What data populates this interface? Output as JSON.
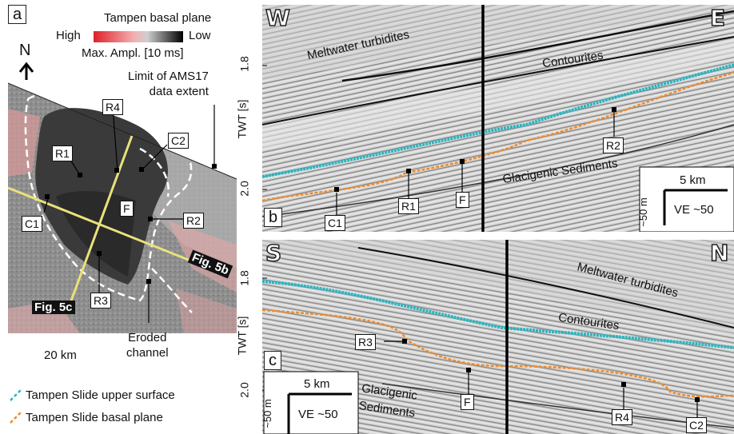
{
  "panel_a": {
    "letter": "a",
    "legend_title": "Tampen basal plane",
    "legend_high": "High",
    "legend_low": "Low",
    "legend_unit": "Max. Ampl. [10 ms]",
    "north": "N",
    "limit_label": "Limit of AMS17\ndata extent",
    "labels": {
      "r4": "R4",
      "r1": "R1",
      "c2": "C2",
      "c1": "C1",
      "f": "F",
      "r2": "R2",
      "r3": "R3"
    },
    "fig5b": "Fig. 5b",
    "fig5c": "Fig. 5c",
    "scale": "20 km",
    "eroded": "Eroded\nchannel"
  },
  "legend": {
    "upper": "Tampen Slide upper surface",
    "basal": "Tampen Slide basal plane"
  },
  "panel_b": {
    "letter": "b",
    "west": "W",
    "east": "E",
    "meltwater": "Meltwater turbidites",
    "contourites": "Contourites",
    "glacigenic": "Glacigenic Sediments",
    "labels": {
      "c1": "C1",
      "r1": "R1",
      "f": "F",
      "r2": "R2"
    },
    "twt": "TWT [s]",
    "tick_top": "1.8",
    "tick_bottom": "2.0",
    "scale_km": "5 km",
    "scale_m": "~50 m",
    "ve": "VE ~50"
  },
  "panel_c": {
    "letter": "c",
    "south": "S",
    "north": "N",
    "meltwater": "Meltwater turbidites",
    "contourites": "Contourites",
    "glacigenic": "Glacigenic\nSediments",
    "labels": {
      "r3": "R3",
      "f": "F",
      "r4": "R4",
      "c2": "C2"
    },
    "twt": "TWT [s]",
    "tick_top": "1.8",
    "tick_bottom": "2.0",
    "scale_km": "5 km",
    "scale_m": "~50 m",
    "ve": "VE ~50"
  },
  "colors": {
    "upper": "#2bb5c0",
    "basal": "#f08a2a",
    "line": "#e8e27a"
  }
}
